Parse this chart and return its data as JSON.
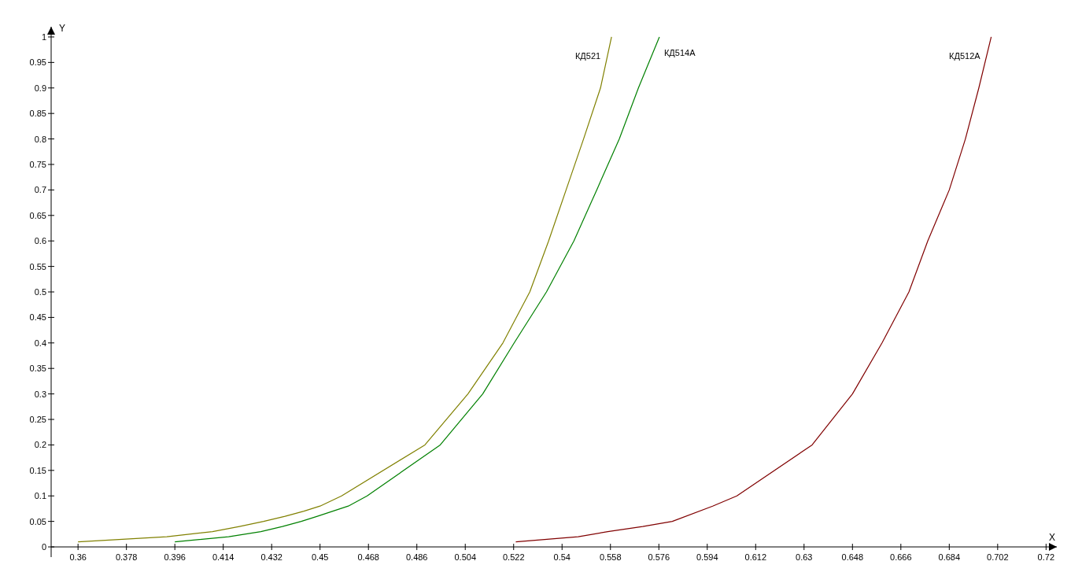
{
  "chart_data": {
    "type": "line",
    "xlabel": "X",
    "ylabel": "Y",
    "xlim": [
      0.35,
      0.724
    ],
    "ylim": [
      -0.02,
      1.02
    ],
    "xticks": [
      0.36,
      0.378,
      0.396,
      0.414,
      0.432,
      0.45,
      0.468,
      0.486,
      0.504,
      0.522,
      0.54,
      0.558,
      0.576,
      0.594,
      0.612,
      0.63,
      0.648,
      0.666,
      0.684,
      0.702,
      0.72
    ],
    "yticks": [
      0,
      0.05,
      0.1,
      0.15,
      0.2,
      0.25,
      0.3,
      0.35,
      0.4,
      0.45,
      0.5,
      0.55,
      0.6,
      0.65,
      0.7,
      0.75,
      0.8,
      0.85,
      0.9,
      0.95,
      1
    ],
    "grid": false,
    "legend": false,
    "marker": "none",
    "line_style": "solid",
    "series": [
      {
        "name": "КД521",
        "color": "#808000",
        "x": [
          0.36,
          0.393,
          0.41,
          0.42,
          0.429,
          0.437,
          0.444,
          0.45,
          0.458,
          0.489,
          0.505,
          0.518,
          0.528,
          0.535,
          0.5415,
          0.548,
          0.5543,
          0.5584
        ],
        "values": [
          0.01,
          0.02,
          0.03,
          0.04,
          0.05,
          0.06,
          0.07,
          0.08,
          0.1,
          0.2,
          0.3,
          0.4,
          0.5,
          0.6,
          0.7,
          0.8,
          0.9,
          1
        ]
      },
      {
        "name": "КД514А",
        "color": "#008000",
        "x": [
          0.396,
          0.416,
          0.428,
          0.436,
          0.443,
          0.449,
          0.4605,
          0.4675,
          0.4947,
          0.5105,
          0.5222,
          0.5342,
          0.5444,
          0.5529,
          0.5613,
          0.5684,
          0.5762
        ],
        "values": [
          0.01,
          0.02,
          0.03,
          0.04,
          0.05,
          0.06,
          0.08,
          0.1,
          0.2,
          0.3,
          0.4,
          0.5,
          0.6,
          0.7,
          0.8,
          0.9,
          1
        ]
      },
      {
        "name": "КД512А",
        "color": "#800000",
        "x": [
          0.5228,
          0.546,
          0.557,
          0.57,
          0.581,
          0.596,
          0.605,
          0.633,
          0.648,
          0.659,
          0.669,
          0.676,
          0.684,
          0.69,
          0.695,
          0.6996
        ],
        "values": [
          0.01,
          0.02,
          0.03,
          0.04,
          0.05,
          0.08,
          0.1,
          0.2,
          0.3,
          0.4,
          0.5,
          0.6,
          0.7,
          0.8,
          0.9,
          1
        ]
      }
    ]
  }
}
